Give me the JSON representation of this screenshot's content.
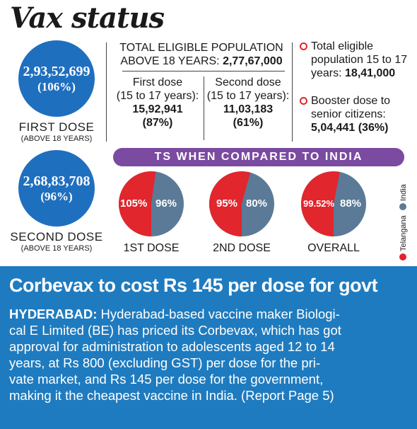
{
  "title": "Vax status",
  "first_dose": {
    "number": "2,93,52,699",
    "percent": "(106%)",
    "label": "FIRST DOSE",
    "sublabel": "(ABOVE 18 YEARS)"
  },
  "second_dose": {
    "number": "2,68,83,708",
    "percent": "(96%)",
    "label": "SECOND DOSE",
    "sublabel": "(ABOVE 18 YEARS)"
  },
  "eligible": {
    "line1": "TOTAL ELIGIBLE POPULATION",
    "line2_label": "ABOVE 18 YEARS: ",
    "line2_value": "2,77,67,000"
  },
  "teen_first": {
    "line1": "First dose",
    "line2": "(15 to 17 years):",
    "value": "15,92,941",
    "percent": "(87%)"
  },
  "teen_second": {
    "line1": "Second dose",
    "line2": "(15 to 17 years):",
    "value": "11,03,183",
    "percent": "(61%)"
  },
  "right_info": {
    "item1_line1": "Total eligible",
    "item1_line2": "population 15 to 17",
    "item1_line3_label": "years: ",
    "item1_value": "18,41,000",
    "item2_line1": "Booster dose to",
    "item2_line2": "senior citizens:",
    "item2_value": "5,04,441 (36%)"
  },
  "banner": "TS WHEN COMPARED TO INDIA",
  "colors": {
    "telangana": "#e1262d",
    "india": "#5b7a97",
    "circle": "#1f6fbf",
    "banner": "#7b4aa1",
    "footer": "#1f7bbf"
  },
  "pies": [
    {
      "label": "1ST DOSE",
      "telangana": "105%",
      "india": "96%",
      "telangana_value": 105,
      "india_value": 96
    },
    {
      "label": "2ND DOSE",
      "telangana": "95%",
      "india": "80%",
      "telangana_value": 95,
      "india_value": 80
    },
    {
      "label": "OVERALL",
      "telangana": "99.52%",
      "india": "88%",
      "telangana_value": 99.52,
      "india_value": 88
    }
  ],
  "legend": {
    "telangana": "Telangana",
    "india": "India"
  },
  "headline": "Corbevax to cost Rs 145 per dose for govt",
  "story": {
    "dateline": "HYDERABAD:",
    "line1": " Hyderabad-based vaccine maker Biologi-",
    "line2": "cal E Limited (BE) has priced its Corbevax, which has got",
    "line3": "approval for administration to adolescents aged 12 to 14",
    "line4": "years, at Rs 800 (excluding GST) per dose for the pri-",
    "line5": "vate market, and Rs 145 per dose for the government,",
    "line6": "making it the cheapest vaccine in India. (Report Page 5)"
  }
}
